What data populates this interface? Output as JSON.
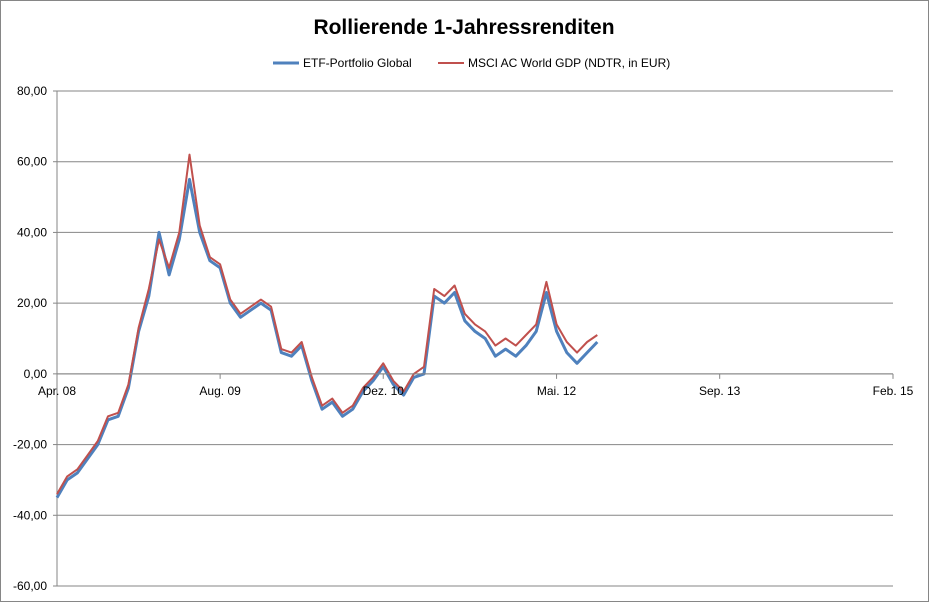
{
  "chart_data": {
    "type": "line",
    "title": "Rollierende 1-Jahressrenditen",
    "xlabel": "",
    "ylabel": "",
    "ylim": [
      -60,
      80
    ],
    "y_ticks": [
      "80,00",
      "60,00",
      "40,00",
      "20,00",
      "0,00",
      "-20,00",
      "-40,00",
      "-60,00"
    ],
    "x_axis": {
      "type": "date",
      "range": [
        "2008-04",
        "2015-02"
      ],
      "ticks": [
        {
          "date": "2008-04",
          "label": "Apr. 08"
        },
        {
          "date": "2009-08",
          "label": "Aug. 09"
        },
        {
          "date": "2010-12",
          "label": "Dez. 10"
        },
        {
          "date": "2012-05",
          "label": "Mai. 12"
        },
        {
          "date": "2013-09",
          "label": "Sep. 13"
        },
        {
          "date": "2015-02",
          "label": "Feb. 15"
        }
      ]
    },
    "grid": true,
    "legend_position": "top",
    "series": [
      {
        "name": "ETF-Portfolio Global",
        "color": "#4f81bd",
        "points": [
          [
            "2008-04",
            -35
          ],
          [
            "2008-05",
            -30
          ],
          [
            "2008-06",
            -28
          ],
          [
            "2008-07",
            -24
          ],
          [
            "2008-08",
            -20
          ],
          [
            "2008-09",
            -13
          ],
          [
            "2008-10",
            -12
          ],
          [
            "2008-11",
            -4
          ],
          [
            "2008-12",
            12
          ],
          [
            "2009-01",
            22
          ],
          [
            "2009-02",
            40
          ],
          [
            "2009-03",
            28
          ],
          [
            "2009-04",
            38
          ],
          [
            "2009-05",
            55
          ],
          [
            "2009-06",
            40
          ],
          [
            "2009-07",
            32
          ],
          [
            "2009-08",
            30
          ],
          [
            "2009-09",
            20
          ],
          [
            "2009-10",
            16
          ],
          [
            "2009-11",
            18
          ],
          [
            "2009-12",
            20
          ],
          [
            "2010-01",
            18
          ],
          [
            "2010-02",
            6
          ],
          [
            "2010-03",
            5
          ],
          [
            "2010-04",
            8
          ],
          [
            "2010-05",
            -2
          ],
          [
            "2010-06",
            -10
          ],
          [
            "2010-07",
            -8
          ],
          [
            "2010-08",
            -12
          ],
          [
            "2010-09",
            -10
          ],
          [
            "2010-10",
            -5
          ],
          [
            "2010-11",
            -2
          ],
          [
            "2010-12",
            2
          ],
          [
            "2011-01",
            -3
          ],
          [
            "2011-02",
            -6
          ],
          [
            "2011-03",
            -1
          ],
          [
            "2011-04",
            0
          ],
          [
            "2011-05",
            22
          ],
          [
            "2011-06",
            20
          ],
          [
            "2011-07",
            23
          ],
          [
            "2011-08",
            15
          ],
          [
            "2011-09",
            12
          ],
          [
            "2011-10",
            10
          ],
          [
            "2011-11",
            5
          ],
          [
            "2011-12",
            7
          ],
          [
            "2012-01",
            5
          ],
          [
            "2012-02",
            8
          ],
          [
            "2012-03",
            12
          ],
          [
            "2012-04",
            23
          ],
          [
            "2012-05",
            12
          ],
          [
            "2012-06",
            6
          ],
          [
            "2012-07",
            3
          ],
          [
            "2012-08",
            6
          ],
          [
            "2012-09",
            9
          ]
        ]
      },
      {
        "name": "MSCI AC World GDP (NDTR, in EUR)",
        "color": "#c0504d",
        "points": [
          [
            "2008-04",
            -34
          ],
          [
            "2008-05",
            -29
          ],
          [
            "2008-06",
            -27
          ],
          [
            "2008-07",
            -23
          ],
          [
            "2008-08",
            -19
          ],
          [
            "2008-09",
            -12
          ],
          [
            "2008-10",
            -11
          ],
          [
            "2008-11",
            -3
          ],
          [
            "2008-12",
            13
          ],
          [
            "2009-01",
            24
          ],
          [
            "2009-02",
            38
          ],
          [
            "2009-03",
            30
          ],
          [
            "2009-04",
            40
          ],
          [
            "2009-05",
            62
          ],
          [
            "2009-06",
            42
          ],
          [
            "2009-07",
            33
          ],
          [
            "2009-08",
            31
          ],
          [
            "2009-09",
            21
          ],
          [
            "2009-10",
            17
          ],
          [
            "2009-11",
            19
          ],
          [
            "2009-12",
            21
          ],
          [
            "2010-01",
            19
          ],
          [
            "2010-02",
            7
          ],
          [
            "2010-03",
            6
          ],
          [
            "2010-04",
            9
          ],
          [
            "2010-05",
            -1
          ],
          [
            "2010-06",
            -9
          ],
          [
            "2010-07",
            -7
          ],
          [
            "2010-08",
            -11
          ],
          [
            "2010-09",
            -9
          ],
          [
            "2010-10",
            -4
          ],
          [
            "2010-11",
            -1
          ],
          [
            "2010-12",
            3
          ],
          [
            "2011-01",
            -2
          ],
          [
            "2011-02",
            -5
          ],
          [
            "2011-03",
            0
          ],
          [
            "2011-04",
            2
          ],
          [
            "2011-05",
            24
          ],
          [
            "2011-06",
            22
          ],
          [
            "2011-07",
            25
          ],
          [
            "2011-08",
            17
          ],
          [
            "2011-09",
            14
          ],
          [
            "2011-10",
            12
          ],
          [
            "2011-11",
            8
          ],
          [
            "2011-12",
            10
          ],
          [
            "2012-01",
            8
          ],
          [
            "2012-02",
            11
          ],
          [
            "2012-03",
            14
          ],
          [
            "2012-04",
            26
          ],
          [
            "2012-05",
            14
          ],
          [
            "2012-06",
            9
          ],
          [
            "2012-07",
            6
          ],
          [
            "2012-08",
            9
          ],
          [
            "2012-09",
            11
          ]
        ]
      }
    ]
  }
}
